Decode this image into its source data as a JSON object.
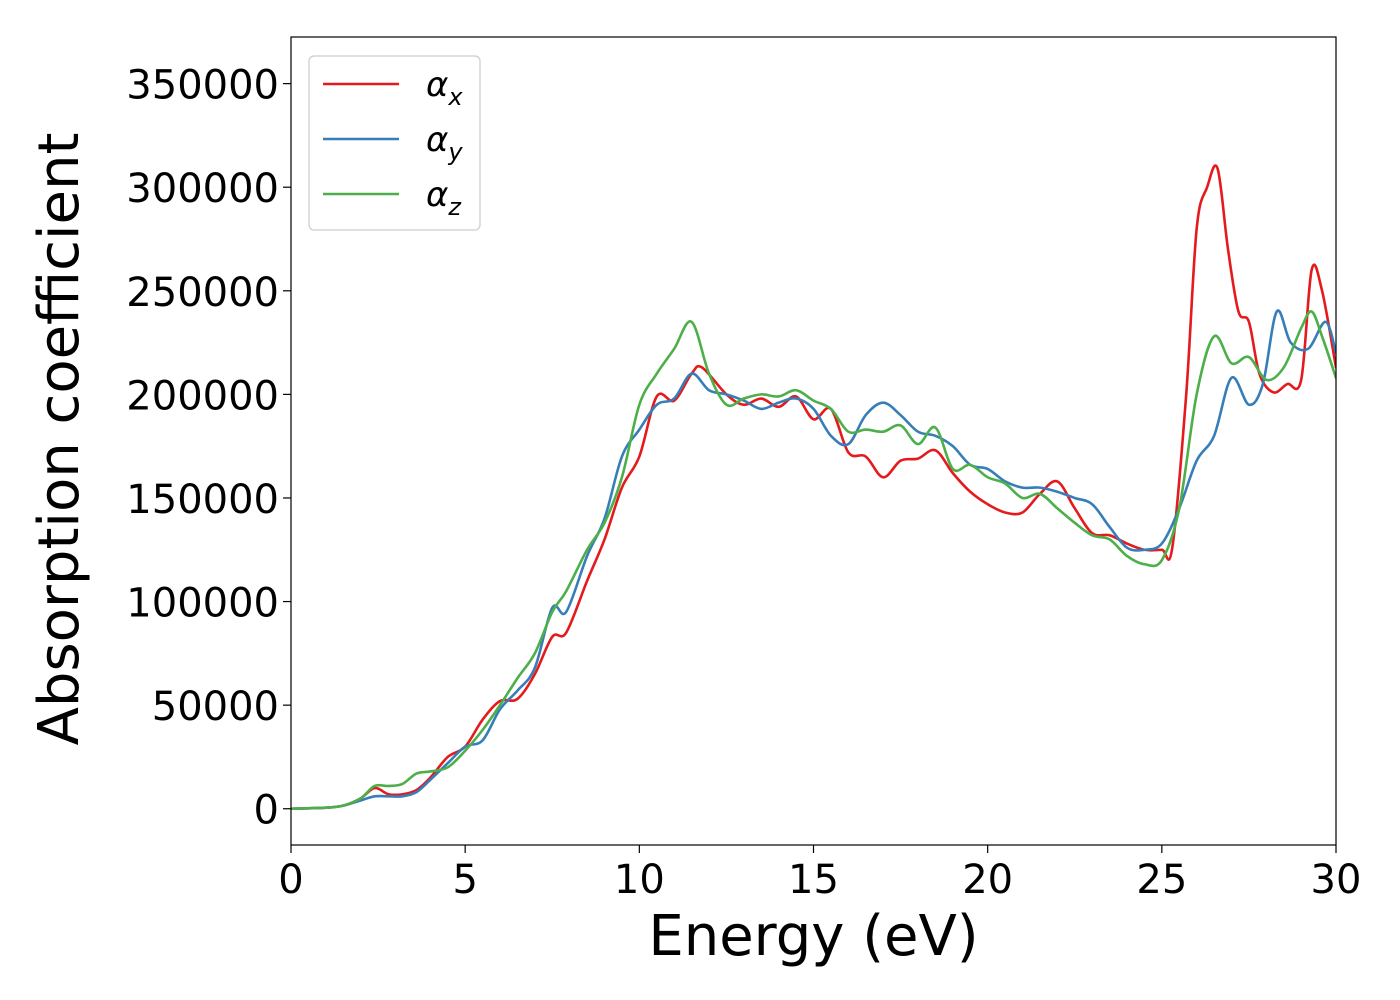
{
  "chart_data": {
    "type": "line",
    "title": "",
    "xlabel": "Energy (eV)",
    "ylabel": "Absorption coefficient",
    "xlim": [
      0,
      30
    ],
    "ylim": [
      -17500,
      372500
    ],
    "xticks": [
      0,
      5,
      10,
      15,
      20,
      25,
      30
    ],
    "xtick_labels": [
      "0",
      "5",
      "10",
      "15",
      "20",
      "25",
      "30"
    ],
    "yticks": [
      0,
      50000,
      100000,
      150000,
      200000,
      250000,
      300000,
      350000
    ],
    "ytick_labels": [
      "0",
      "50000",
      "100000",
      "150000",
      "200000",
      "250000",
      "300000",
      "350000"
    ],
    "grid": false,
    "legend_position": "top-left",
    "series": [
      {
        "name": "α",
        "subscript": "x",
        "color": "#e41a1c",
        "x": [
          0,
          1,
          1.5,
          2,
          2.4,
          2.8,
          3.2,
          3.6,
          4,
          4.5,
          5,
          5.5,
          6,
          6.5,
          7,
          7.5,
          7.9,
          8.5,
          9,
          9.5,
          10,
          10.5,
          11,
          11.5,
          11.8,
          12.5,
          13,
          13.5,
          14,
          14.5,
          15,
          15.5,
          16,
          16.5,
          17,
          17.5,
          18,
          18.5,
          19,
          19.5,
          20,
          20.5,
          21,
          21.5,
          22,
          22.5,
          23,
          23.5,
          24,
          24.5,
          25,
          25.3,
          25.7,
          26,
          26.3,
          26.6,
          26.9,
          27.2,
          27.5,
          27.8,
          28.2,
          28.6,
          29,
          29.3,
          29.6,
          30
        ],
        "y": [
          0,
          500,
          1500,
          5000,
          10000,
          7000,
          7000,
          9000,
          15000,
          25000,
          30000,
          43000,
          52000,
          53000,
          65000,
          83000,
          85000,
          110000,
          130000,
          155000,
          170000,
          199000,
          197000,
          210000,
          213000,
          200000,
          195000,
          198000,
          194000,
          199000,
          188000,
          193000,
          172000,
          170000,
          160000,
          168000,
          169000,
          173000,
          162000,
          153000,
          147000,
          143000,
          143000,
          152000,
          158000,
          145000,
          133000,
          132000,
          128000,
          125000,
          125000,
          126000,
          200000,
          280000,
          300000,
          309000,
          270000,
          240000,
          235000,
          210000,
          201000,
          205000,
          207000,
          260000,
          250000,
          213000
        ]
      },
      {
        "name": "α",
        "subscript": "y",
        "color": "#377eb8",
        "x": [
          0,
          1,
          1.5,
          2,
          2.4,
          2.8,
          3.2,
          3.6,
          4,
          4.5,
          5,
          5.5,
          6,
          6.5,
          7,
          7.5,
          7.9,
          8.5,
          9,
          9.5,
          10,
          10.5,
          11,
          11.5,
          12,
          12.5,
          13,
          13.5,
          14,
          14.5,
          15,
          15.5,
          16,
          16.5,
          17,
          17.5,
          18,
          18.5,
          19,
          19.5,
          20,
          20.5,
          21,
          21.5,
          22,
          22.5,
          23,
          23.5,
          24,
          24.5,
          25,
          25.5,
          26,
          26.5,
          27,
          27.5,
          27.9,
          28.3,
          28.7,
          29.2,
          29.7,
          30
        ],
        "y": [
          0,
          500,
          1500,
          4000,
          6000,
          6000,
          6000,
          8000,
          14000,
          22000,
          30000,
          33000,
          48000,
          57000,
          68000,
          97000,
          95000,
          122000,
          140000,
          170000,
          183000,
          195000,
          198000,
          210000,
          202000,
          200000,
          197000,
          193000,
          196000,
          198000,
          193000,
          180000,
          176000,
          190000,
          196000,
          190000,
          182000,
          180000,
          175000,
          166000,
          164000,
          158000,
          155000,
          155000,
          153000,
          150000,
          147000,
          136000,
          126000,
          125000,
          128000,
          145000,
          168000,
          180000,
          208000,
          195000,
          205000,
          240000,
          225000,
          222000,
          235000,
          220000
        ]
      },
      {
        "name": "α",
        "subscript": "z",
        "color": "#4daf4a",
        "x": [
          0,
          1,
          1.5,
          2,
          2.4,
          2.8,
          3.2,
          3.6,
          4,
          4.5,
          5,
          5.5,
          6,
          6.5,
          7,
          7.5,
          7.9,
          8.5,
          9,
          9.5,
          10,
          10.5,
          11,
          11.5,
          12,
          12.5,
          13,
          13.5,
          14,
          14.5,
          15,
          15.5,
          16,
          16.5,
          17,
          17.5,
          18,
          18.5,
          19,
          19.5,
          20,
          20.5,
          21,
          21.5,
          22,
          22.5,
          23,
          23.5,
          24,
          24.5,
          25,
          25.5,
          26,
          26.5,
          27,
          27.5,
          28,
          28.5,
          29,
          29.3,
          29.6,
          30
        ],
        "y": [
          0,
          500,
          1500,
          5000,
          11000,
          11000,
          12000,
          17000,
          18000,
          20000,
          28000,
          38000,
          50000,
          63000,
          75000,
          95000,
          105000,
          125000,
          138000,
          160000,
          195000,
          210000,
          222000,
          235000,
          210000,
          195000,
          198000,
          200000,
          199000,
          202000,
          197000,
          193000,
          182000,
          183000,
          182000,
          185000,
          176000,
          184000,
          164000,
          166000,
          160000,
          157000,
          150000,
          152000,
          145000,
          138000,
          132000,
          130000,
          122000,
          118000,
          120000,
          145000,
          200000,
          228000,
          215000,
          218000,
          207000,
          213000,
          232000,
          240000,
          228000,
          208000
        ]
      }
    ]
  }
}
